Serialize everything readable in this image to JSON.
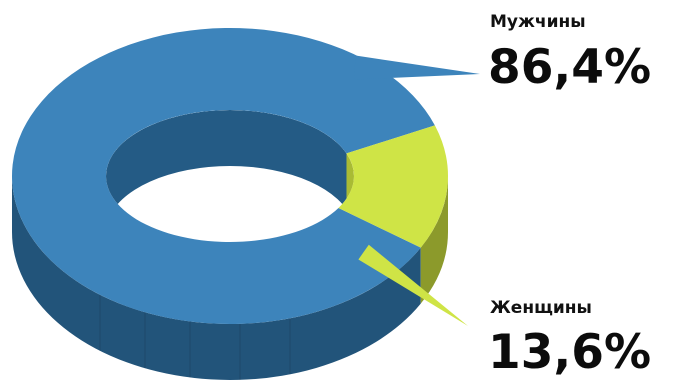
{
  "chart_data": {
    "type": "pie",
    "style": "3d-donut",
    "series": [
      {
        "name": "Мужчины",
        "value": 86.4,
        "display": "86,4%",
        "color": "#3d84bb",
        "side_color": "#22547a",
        "inner_color": "#245b85"
      },
      {
        "name": "Женщины",
        "value": 13.6,
        "display": "13,6%",
        "color": "#cfe446",
        "side_color": "#8c9a2b",
        "inner_color": "#a9bb34"
      }
    ],
    "legend": "none",
    "labels": "callouts-right"
  }
}
